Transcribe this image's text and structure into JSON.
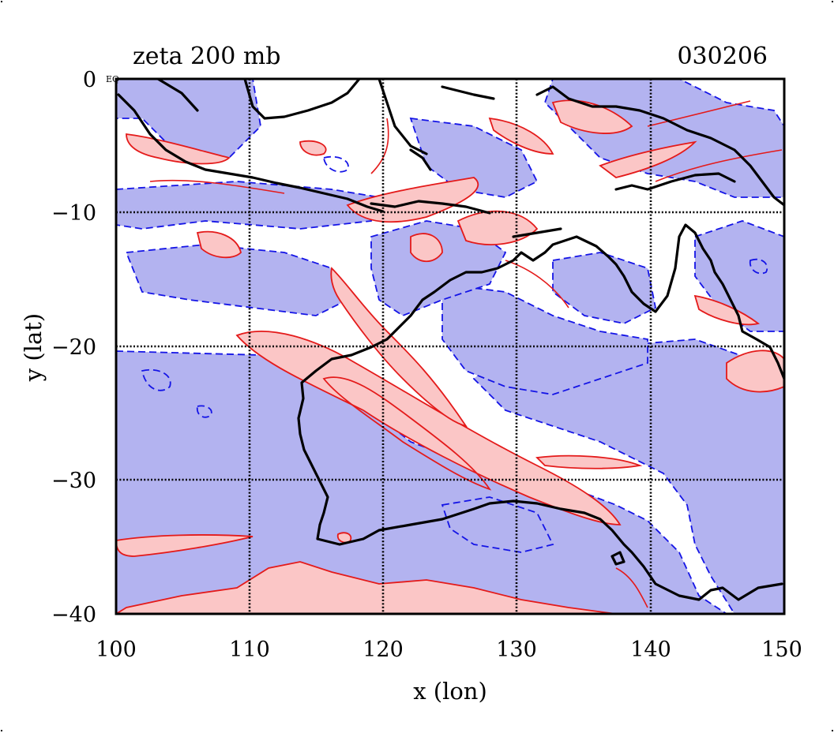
{
  "plot": {
    "title_left": "zeta 200 mb",
    "title_right": "030206",
    "equator_mark": "EQ",
    "xlabel": "x (lon)",
    "ylabel": "y (lat)",
    "x_ticks": [
      "100",
      "110",
      "120",
      "130",
      "140",
      "150"
    ],
    "y_ticks": [
      "0",
      "−10",
      "−20",
      "−30",
      "−40"
    ]
  },
  "map": {
    "projection": "longitude-latitude",
    "lon_range": [
      100,
      150
    ],
    "lat_range": [
      -40,
      0
    ],
    "gridlines": true,
    "colors": {
      "negative_fill": "#b3b3f0",
      "negative_contour": "#1414e6",
      "positive_fill": "#fbc6c6",
      "positive_contour": "#e41a1a",
      "coastline": "#000000"
    }
  }
}
